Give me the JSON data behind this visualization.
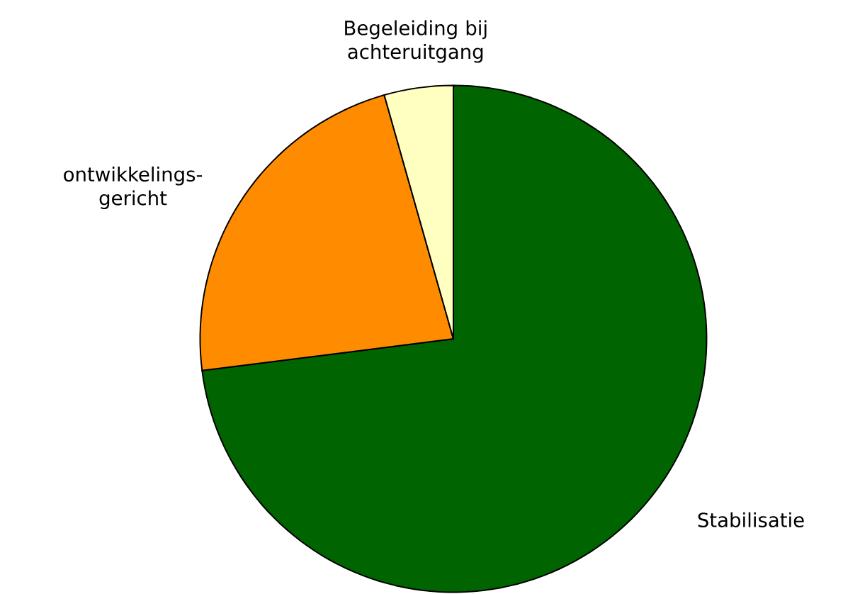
{
  "chart_data": {
    "type": "pie",
    "categories": [
      "Stabilisatie",
      "ontwikkelings-gericht",
      "Begeleiding bij achteruitgang"
    ],
    "values": [
      73,
      22.6,
      4.4
    ],
    "colors": [
      "#006400",
      "#ff8c00",
      "#ffffc0"
    ]
  }
}
